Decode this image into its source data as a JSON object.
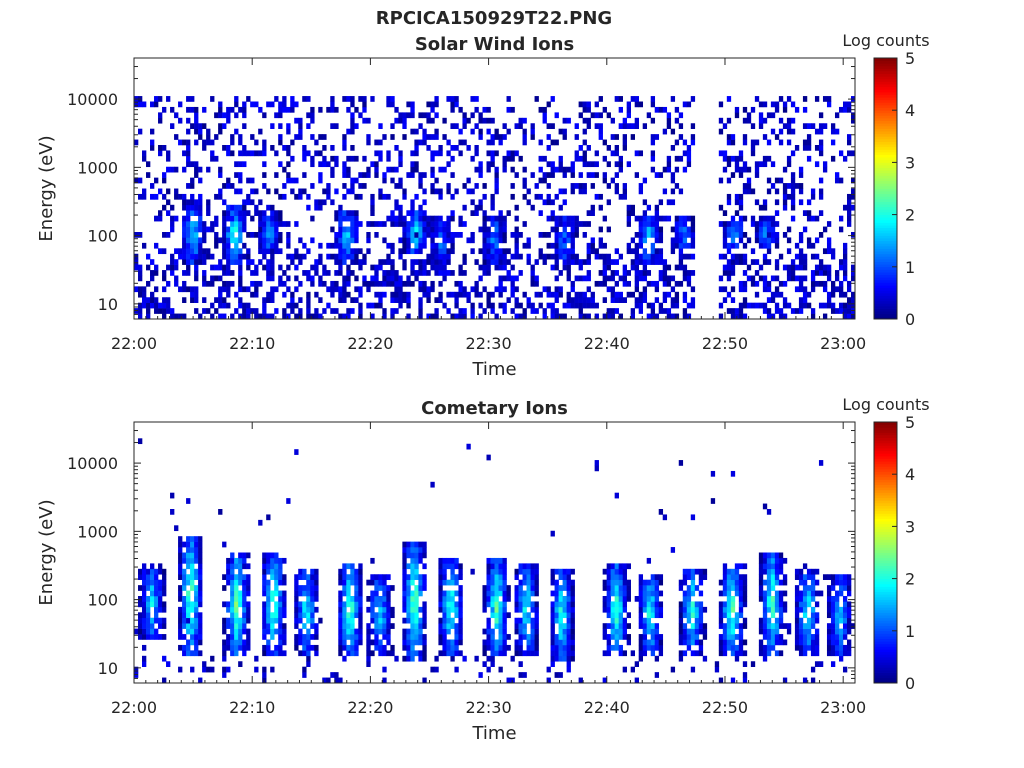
{
  "figure": {
    "title": "RPCICA150929T22.PNG",
    "background": "#ffffff"
  },
  "chart_data": [
    {
      "type": "heatmap",
      "title": "Solar Wind Ions",
      "xlabel": "Time",
      "ylabel": "Energy (eV)",
      "x_ticks": [
        "22:00",
        "22:10",
        "22:20",
        "22:30",
        "22:40",
        "22:50",
        "23:00"
      ],
      "y_ticks": [
        "10",
        "100",
        "1000",
        "10000"
      ],
      "y_scale": "log",
      "ylim": [
        6,
        40000
      ],
      "xlim_minutes": [
        0,
        61
      ],
      "colorbar": {
        "label": "Log counts",
        "ticks": [
          "0",
          "1",
          "2",
          "3",
          "4",
          "5"
        ],
        "range": [
          0,
          5
        ],
        "colormap": "jet"
      },
      "data_gaps_minutes": [
        [
          47.5,
          49.5
        ]
      ],
      "bursts": [
        {
          "t": 5,
          "e_low": 40,
          "e_high": 300,
          "peak": 1.9
        },
        {
          "t": 8.5,
          "e_low": 40,
          "e_high": 300,
          "peak": 2.2
        },
        {
          "t": 11.5,
          "e_low": 50,
          "e_high": 250,
          "peak": 1.6
        },
        {
          "t": 18,
          "e_low": 40,
          "e_high": 250,
          "peak": 1.8
        },
        {
          "t": 23.8,
          "e_low": 50,
          "e_high": 250,
          "peak": 1.9
        },
        {
          "t": 26,
          "e_low": 40,
          "e_high": 200,
          "peak": 1.3
        },
        {
          "t": 30.5,
          "e_low": 40,
          "e_high": 200,
          "peak": 1.4
        },
        {
          "t": 36.5,
          "e_low": 40,
          "e_high": 200,
          "peak": 1.4
        },
        {
          "t": 43.5,
          "e_low": 40,
          "e_high": 200,
          "peak": 1.8
        },
        {
          "t": 46.5,
          "e_low": 60,
          "e_high": 200,
          "peak": 1.4
        },
        {
          "t": 50.8,
          "e_low": 60,
          "e_high": 200,
          "peak": 1.5
        },
        {
          "t": 53.5,
          "e_low": 60,
          "e_high": 200,
          "peak": 1.4
        }
      ]
    },
    {
      "type": "heatmap",
      "title": "Cometary Ions",
      "xlabel": "Time",
      "ylabel": "Energy (eV)",
      "x_ticks": [
        "22:00",
        "22:10",
        "22:20",
        "22:30",
        "22:40",
        "22:50",
        "23:00"
      ],
      "y_ticks": [
        "10",
        "100",
        "1000",
        "10000"
      ],
      "y_scale": "log",
      "ylim": [
        6,
        40000
      ],
      "xlim_minutes": [
        0,
        61
      ],
      "colorbar": {
        "label": "Log counts",
        "ticks": [
          "0",
          "1",
          "2",
          "3",
          "4",
          "5"
        ],
        "range": [
          0,
          5
        ],
        "colormap": "jet"
      },
      "bursts": [
        {
          "t": 1.5,
          "e_low": 25,
          "e_high": 350,
          "peak": 1.8
        },
        {
          "t": 4.8,
          "e_low": 15,
          "e_high": 900,
          "peak": 2.5
        },
        {
          "t": 8.7,
          "e_low": 15,
          "e_high": 450,
          "peak": 2.6
        },
        {
          "t": 11.8,
          "e_low": 15,
          "e_high": 450,
          "peak": 2.4
        },
        {
          "t": 14.6,
          "e_low": 15,
          "e_high": 300,
          "peak": 2.0
        },
        {
          "t": 18.3,
          "e_low": 15,
          "e_high": 350,
          "peak": 2.5
        },
        {
          "t": 20.8,
          "e_low": 15,
          "e_high": 250,
          "peak": 1.8
        },
        {
          "t": 23.7,
          "e_low": 12,
          "e_high": 700,
          "peak": 2.6
        },
        {
          "t": 26.8,
          "e_low": 15,
          "e_high": 400,
          "peak": 2.3
        },
        {
          "t": 30.7,
          "e_low": 15,
          "e_high": 400,
          "peak": 2.4
        },
        {
          "t": 33.2,
          "e_low": 15,
          "e_high": 350,
          "peak": 2.0
        },
        {
          "t": 36.2,
          "e_low": 12,
          "e_high": 300,
          "peak": 2.2
        },
        {
          "t": 40.8,
          "e_low": 15,
          "e_high": 350,
          "peak": 2.3
        },
        {
          "t": 43.7,
          "e_low": 15,
          "e_high": 250,
          "peak": 2.1
        },
        {
          "t": 47.2,
          "e_low": 15,
          "e_high": 300,
          "peak": 2.2
        },
        {
          "t": 50.6,
          "e_low": 15,
          "e_high": 350,
          "peak": 2.5
        },
        {
          "t": 54.0,
          "e_low": 15,
          "e_high": 500,
          "peak": 2.4
        },
        {
          "t": 57.0,
          "e_low": 15,
          "e_high": 300,
          "peak": 2.0
        },
        {
          "t": 59.7,
          "e_low": 15,
          "e_high": 250,
          "peak": 1.8
        }
      ]
    }
  ]
}
